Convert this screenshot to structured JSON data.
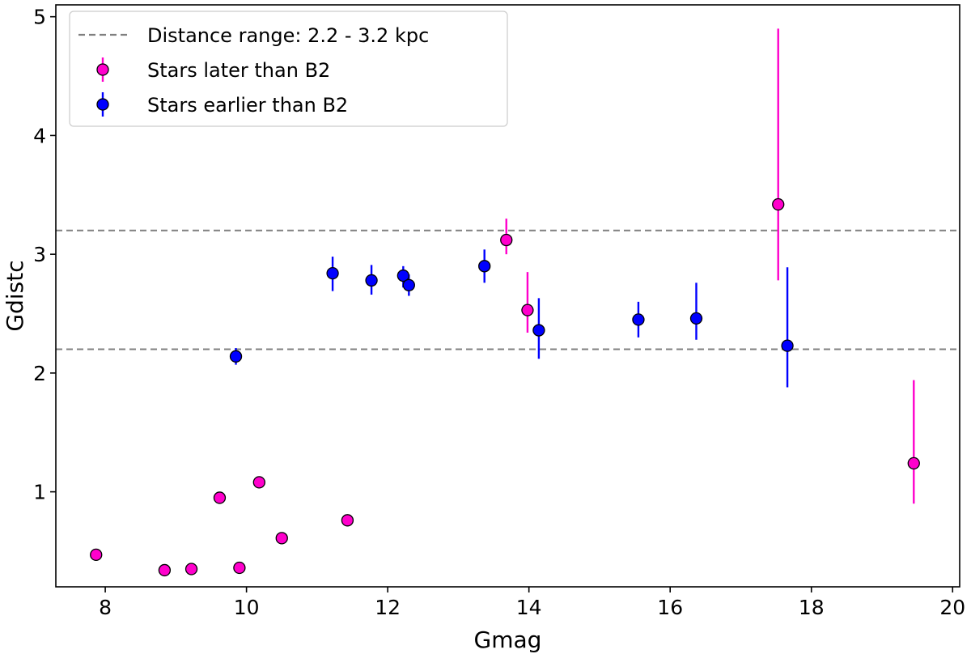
{
  "chart_data": {
    "type": "scatter",
    "title": "",
    "xlabel": "Gmag",
    "ylabel": "Gdistc",
    "xlim": [
      7.3,
      20.1
    ],
    "ylim": [
      0.2,
      5.1
    ],
    "xticks": [
      8,
      10,
      12,
      14,
      16,
      18,
      20
    ],
    "yticks": [
      1,
      2,
      3,
      4,
      5
    ],
    "grid": false,
    "legend_position": "top-left",
    "reference_lines": [
      {
        "name": "Distance range: 2.2 - 3.2 kpc",
        "orientation": "horizontal",
        "values": [
          2.2,
          3.2
        ],
        "color": "#808080",
        "style": "dashed"
      }
    ],
    "series": [
      {
        "name": "Stars later than B2",
        "color": "#ff00cc",
        "points": [
          {
            "x": 7.87,
            "y": 0.47
          },
          {
            "x": 8.84,
            "y": 0.34
          },
          {
            "x": 9.22,
            "y": 0.35
          },
          {
            "x": 9.62,
            "y": 0.95
          },
          {
            "x": 9.9,
            "y": 0.36
          },
          {
            "x": 10.18,
            "y": 1.08
          },
          {
            "x": 10.5,
            "y": 0.61
          },
          {
            "x": 11.43,
            "y": 0.76
          },
          {
            "x": 13.68,
            "y": 3.12,
            "ylow": 3.0,
            "yhigh": 3.3
          },
          {
            "x": 13.98,
            "y": 2.53,
            "ylow": 2.34,
            "yhigh": 2.85
          },
          {
            "x": 17.53,
            "y": 3.42,
            "ylow": 2.78,
            "yhigh": 4.9
          },
          {
            "x": 19.45,
            "y": 1.24,
            "ylow": 0.9,
            "yhigh": 1.94
          }
        ]
      },
      {
        "name": "Stars earlier than B2",
        "color": "#0000ff",
        "points": [
          {
            "x": 9.85,
            "y": 2.14,
            "ylow": 2.07,
            "yhigh": 2.21
          },
          {
            "x": 11.22,
            "y": 2.84,
            "ylow": 2.69,
            "yhigh": 2.98
          },
          {
            "x": 11.77,
            "y": 2.78,
            "ylow": 2.66,
            "yhigh": 2.91
          },
          {
            "x": 12.22,
            "y": 2.82,
            "ylow": 2.72,
            "yhigh": 2.9
          },
          {
            "x": 12.3,
            "y": 2.74,
            "ylow": 2.65,
            "yhigh": 2.83
          },
          {
            "x": 13.37,
            "y": 2.9,
            "ylow": 2.76,
            "yhigh": 3.04
          },
          {
            "x": 14.14,
            "y": 2.36,
            "ylow": 2.12,
            "yhigh": 2.63
          },
          {
            "x": 15.55,
            "y": 2.45,
            "ylow": 2.3,
            "yhigh": 2.6
          },
          {
            "x": 16.37,
            "y": 2.46,
            "ylow": 2.28,
            "yhigh": 2.76
          },
          {
            "x": 17.66,
            "y": 2.23,
            "ylow": 1.88,
            "yhigh": 2.89
          }
        ]
      }
    ]
  }
}
